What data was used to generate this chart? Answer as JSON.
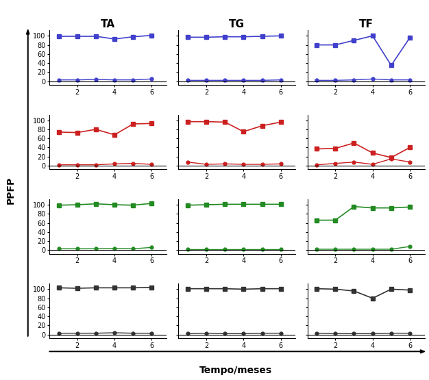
{
  "columns": [
    "TA",
    "TG",
    "TF"
  ],
  "rows": [
    "blue",
    "red",
    "green",
    "black"
  ],
  "x": [
    1,
    2,
    3,
    4,
    5,
    6
  ],
  "series": {
    "TA": {
      "blue": {
        "upper": [
          99,
          99,
          99,
          93,
          98,
          101
        ],
        "lower": [
          3,
          3,
          4,
          3,
          3,
          5
        ]
      },
      "red": {
        "upper": [
          74,
          73,
          80,
          68,
          92,
          93
        ],
        "lower": [
          2,
          2,
          2,
          4,
          5,
          3
        ]
      },
      "green": {
        "upper": [
          99,
          100,
          102,
          100,
          99,
          103
        ],
        "lower": [
          3,
          3,
          3,
          4,
          3,
          6
        ]
      },
      "black": {
        "upper": [
          103,
          102,
          103,
          103,
          103,
          104
        ],
        "lower": [
          3,
          3,
          3,
          4,
          3,
          3
        ]
      }
    },
    "TG": {
      "blue": {
        "upper": [
          97,
          97,
          98,
          98,
          99,
          100
        ],
        "lower": [
          2,
          2,
          2,
          2,
          2,
          3
        ]
      },
      "red": {
        "upper": [
          97,
          97,
          96,
          75,
          88,
          96
        ],
        "lower": [
          8,
          3,
          4,
          3,
          3,
          4
        ]
      },
      "green": {
        "upper": [
          99,
          100,
          101,
          101,
          101,
          101
        ],
        "lower": [
          2,
          2,
          2,
          2,
          2,
          2
        ]
      },
      "black": {
        "upper": [
          101,
          101,
          101,
          100,
          101,
          101
        ],
        "lower": [
          2,
          3,
          2,
          2,
          3,
          3
        ]
      }
    },
    "TF": {
      "blue": {
        "upper": [
          80,
          80,
          90,
          100,
          35,
          96
        ],
        "lower": [
          2,
          2,
          3,
          5,
          3,
          3
        ]
      },
      "red": {
        "upper": [
          37,
          38,
          50,
          28,
          18,
          40
        ],
        "lower": [
          2,
          5,
          8,
          3,
          15,
          8
        ]
      },
      "green": {
        "upper": [
          66,
          66,
          96,
          93,
          93,
          95
        ],
        "lower": [
          2,
          2,
          2,
          2,
          2,
          8
        ]
      },
      "black": {
        "upper": [
          101,
          100,
          96,
          80,
          100,
          98
        ],
        "lower": [
          3,
          2,
          2,
          2,
          3,
          3
        ]
      }
    }
  },
  "colors": {
    "blue": "#4040cc",
    "red": "#cc2020",
    "green": "#228B22",
    "black": "#333333"
  },
  "col_titles": [
    "TA",
    "TG",
    "TF"
  ],
  "ylabel": "PPFP",
  "xlabel": "Tempo/meses",
  "yticks": [
    0,
    20,
    40,
    60,
    80,
    100
  ],
  "xticks": [
    2,
    4,
    6
  ],
  "ylim": [
    -8,
    112
  ],
  "xlim": [
    0.5,
    6.8
  ]
}
